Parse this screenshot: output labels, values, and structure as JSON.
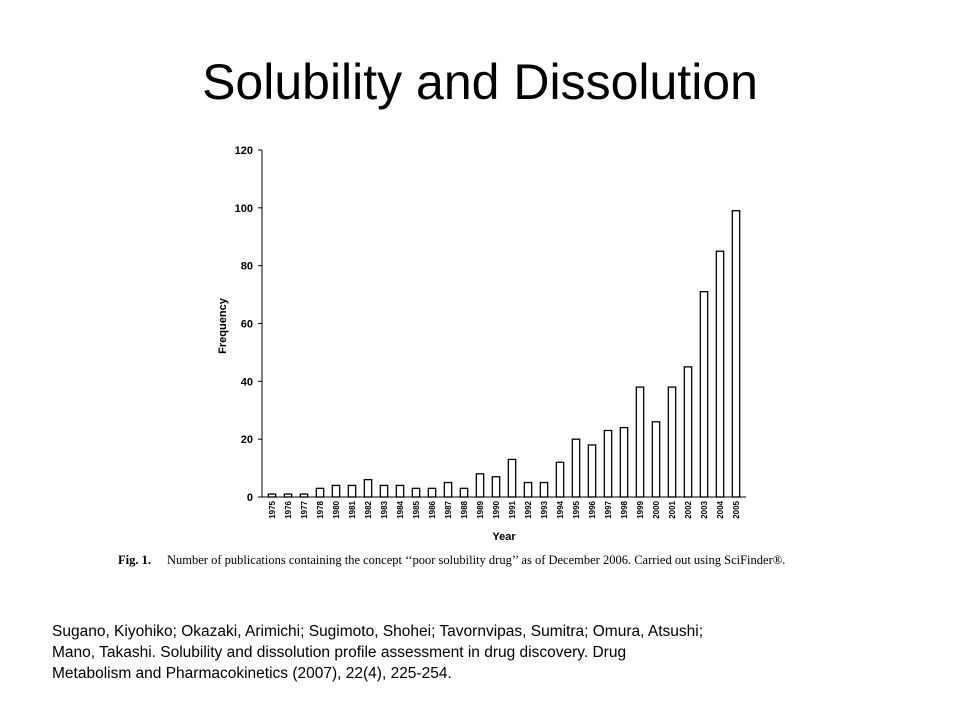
{
  "slide": {
    "title": "Solubility and Dissolution"
  },
  "figure": {
    "caption_label": "Fig. 1.",
    "caption_text": "Number of publications containing the concept ‘‘poor solubility drug’’ as of December 2006. Carried out using SciFinder®."
  },
  "citation": {
    "lines": [
      "Sugano, Kiyohiko; Okazaki, Arimichi; Sugimoto, Shohei; Tavornvipas, Sumitra; Omura, Atsushi;",
      "Mano, Takashi.  Solubility and dissolution profile assessment in drug discovery.   Drug",
      "Metabolism and Pharmacokinetics (2007), 22(4), 225-254."
    ]
  },
  "chart_data": {
    "type": "bar",
    "title": "",
    "xlabel": "Year",
    "ylabel": "Frequency",
    "ylim": [
      0,
      120
    ],
    "yticks": [
      0,
      20,
      40,
      60,
      80,
      100,
      120
    ],
    "categories": [
      "1975",
      "1976",
      "1977",
      "1978",
      "1980",
      "1981",
      "1982",
      "1983",
      "1984",
      "1985",
      "1986",
      "1987",
      "1988",
      "1989",
      "1990",
      "1991",
      "1992",
      "1993",
      "1994",
      "1995",
      "1996",
      "1997",
      "1998",
      "1999",
      "2000",
      "2001",
      "2002",
      "2003",
      "2004",
      "2005"
    ],
    "values": [
      1,
      1,
      1,
      3,
      4,
      4,
      6,
      4,
      4,
      3,
      3,
      5,
      3,
      8,
      7,
      13,
      5,
      5,
      12,
      20,
      18,
      23,
      24,
      38,
      26,
      38,
      45,
      71,
      85,
      99
    ],
    "bar_fill": "#ffffff",
    "bar_stroke": "#000000",
    "grid": false,
    "legend": "none"
  }
}
